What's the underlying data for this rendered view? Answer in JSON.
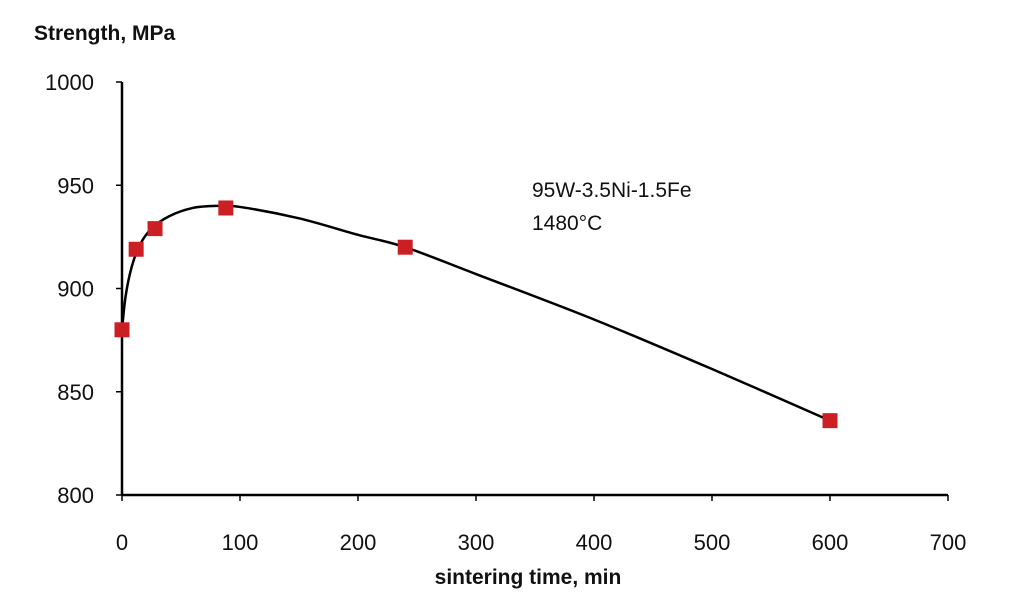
{
  "chart_data": {
    "type": "scatter",
    "title": "",
    "ylabel": "Strength, MPa",
    "xlabel": "sintering time, min",
    "xlim": [
      0,
      700
    ],
    "ylim": [
      800,
      1000
    ],
    "xticks": [
      0,
      100,
      200,
      300,
      400,
      500,
      600,
      700
    ],
    "yticks": [
      800,
      850,
      900,
      950,
      1000
    ],
    "grid": false,
    "annotation": [
      "95W-3.5Ni-1.5Fe",
      "1480°C"
    ],
    "series": [
      {
        "x": [
          0,
          12,
          28,
          88,
          240,
          600
        ],
        "y": [
          880,
          919,
          929,
          939,
          920,
          836
        ],
        "marker": "square",
        "color": "#cc1f24"
      }
    ],
    "trend_curve": {
      "x": [
        0,
        3,
        8,
        15,
        25,
        40,
        60,
        80,
        100,
        150,
        200,
        240,
        300,
        400,
        500,
        600
      ],
      "y": [
        880,
        896,
        910,
        921,
        929,
        935,
        939,
        940,
        939.5,
        934,
        926,
        920,
        907,
        885,
        861,
        836
      ],
      "color": "#000000"
    }
  }
}
